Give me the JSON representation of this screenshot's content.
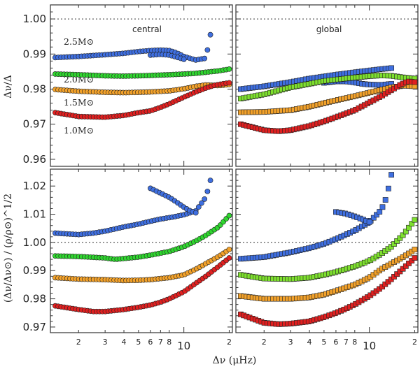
{
  "figure": {
    "xlabel": "Δν (μHz)",
    "ylabel_top": "Δν/Δ",
    "ylabel_bottom": "(Δν/Δν⊙) / (ρ/ρ⊙)^1/2"
  },
  "colors": {
    "2.5": "#3f6fe0",
    "2.0": "#2fd62f",
    "2.0_global": "#7ee02e",
    "1.5": "#f2a12a",
    "1.0": "#e02020",
    "edge": "#222222"
  },
  "chart_data": [
    {
      "type": "scatter",
      "panel": "top-left",
      "annotation": "central",
      "x_scale": "log",
      "xlim": [
        1.3,
        21
      ],
      "ylim": [
        0.958,
        1.004
      ],
      "yticks": [
        0.96,
        0.97,
        0.98,
        0.99,
        1.0
      ],
      "reference_line": 1.0,
      "marker": "circle",
      "mass_labels": [
        "2.5M⊙",
        "2.0M⊙",
        "1.5M⊙",
        "1.0M⊙"
      ],
      "series": [
        {
          "mass": "2.5",
          "x": [
            1.4,
            2,
            3,
            4,
            5,
            6,
            7,
            8,
            9,
            10,
            12,
            14,
            15
          ],
          "y": [
            0.989,
            0.9893,
            0.9898,
            0.9902,
            0.9907,
            0.991,
            0.9911,
            0.991,
            0.9903,
            0.9893,
            0.9883,
            0.9888,
            0.9955
          ]
        },
        {
          "mass": "2.5",
          "x": [
            6,
            7,
            8,
            9,
            10
          ],
          "y": [
            0.9897,
            0.9899,
            0.9897,
            0.9891,
            0.9885
          ]
        },
        {
          "mass": "2.0",
          "x": [
            1.4,
            2,
            3,
            4,
            5,
            6,
            8,
            10,
            12,
            14,
            17,
            20
          ],
          "y": [
            0.9843,
            0.9841,
            0.9838,
            0.9837,
            0.9838,
            0.9839,
            0.9841,
            0.9843,
            0.9845,
            0.9848,
            0.9852,
            0.9857
          ]
        },
        {
          "mass": "1.5",
          "x": [
            1.4,
            2,
            3,
            4,
            5,
            6,
            8,
            10,
            12,
            14,
            17,
            20
          ],
          "y": [
            0.9799,
            0.9794,
            0.9791,
            0.979,
            0.9791,
            0.9792,
            0.9795,
            0.9801,
            0.9808,
            0.9812,
            0.981,
            0.9813
          ]
        },
        {
          "mass": "1.0",
          "x": [
            1.4,
            2,
            3,
            4,
            5,
            6,
            7,
            8,
            10,
            12,
            14,
            16,
            18,
            20
          ],
          "y": [
            0.9733,
            0.9722,
            0.972,
            0.9725,
            0.9733,
            0.9738,
            0.9748,
            0.9758,
            0.9777,
            0.9792,
            0.9803,
            0.9811,
            0.9815,
            0.9818
          ]
        }
      ]
    },
    {
      "type": "scatter",
      "panel": "top-right",
      "annotation": "global",
      "x_scale": "log",
      "xlim": [
        1.3,
        21
      ],
      "ylim": [
        0.958,
        1.004
      ],
      "reference_line": 1.0,
      "marker": "square",
      "series": [
        {
          "mass": "2.5",
          "x": [
            1.4,
            2,
            3,
            4,
            5,
            6,
            8,
            10,
            12,
            14
          ],
          "y": [
            0.98,
            0.9808,
            0.982,
            0.983,
            0.9836,
            0.9841,
            0.9848,
            0.9853,
            0.9857,
            0.986
          ]
        },
        {
          "mass": "2.5",
          "x": [
            5,
            6,
            7,
            8,
            9,
            10,
            12,
            14
          ],
          "y": [
            0.9818,
            0.9822,
            0.9822,
            0.9819,
            0.9815,
            0.9813,
            0.9812,
            0.9815
          ]
        },
        {
          "mass": "2.0",
          "x": [
            1.4,
            2,
            3,
            4,
            5,
            6,
            8,
            10,
            12,
            14,
            17,
            20
          ],
          "y": [
            0.9773,
            0.9785,
            0.9805,
            0.9815,
            0.9823,
            0.9827,
            0.9833,
            0.9837,
            0.9839,
            0.9838,
            0.9833,
            0.983
          ]
        },
        {
          "mass": "1.5",
          "x": [
            1.4,
            2,
            3,
            4,
            5,
            6,
            8,
            10,
            12,
            14,
            17,
            20
          ],
          "y": [
            0.9734,
            0.9735,
            0.974,
            0.975,
            0.976,
            0.9768,
            0.978,
            0.979,
            0.9798,
            0.9805,
            0.981,
            0.9808
          ]
        },
        {
          "mass": "1.0",
          "x": [
            1.4,
            2,
            2.5,
            3,
            4,
            5,
            6,
            8,
            10,
            12,
            14,
            16,
            18,
            20
          ],
          "y": [
            0.97,
            0.9683,
            0.968,
            0.9683,
            0.9695,
            0.9708,
            0.972,
            0.974,
            0.9762,
            0.978,
            0.9797,
            0.9812,
            0.9822,
            0.982
          ]
        }
      ]
    },
    {
      "type": "scatter",
      "panel": "bottom-left",
      "x_scale": "log",
      "xlim": [
        1.3,
        21
      ],
      "ylim": [
        0.968,
        1.026
      ],
      "yticks": [
        0.97,
        0.98,
        0.99,
        1.0,
        1.01,
        1.02
      ],
      "reference_line": 1.0,
      "marker": "circle",
      "series": [
        {
          "mass": "2.5",
          "x": [
            1.4,
            2,
            2.5,
            3,
            4,
            5,
            6,
            7,
            8,
            9,
            10,
            12,
            14,
            15
          ],
          "y": [
            1.0033,
            1.0028,
            1.0033,
            1.004,
            1.0055,
            1.0065,
            1.0075,
            1.0083,
            1.0088,
            1.0093,
            1.0098,
            1.0112,
            1.016,
            1.022
          ]
        },
        {
          "mass": "2.5",
          "x": [
            6,
            7,
            8,
            9,
            10,
            11,
            12
          ],
          "y": [
            1.0192,
            1.0175,
            1.016,
            1.0142,
            1.0125,
            1.0112,
            1.0105
          ]
        },
        {
          "mass": "2.0",
          "x": [
            1.4,
            2,
            3,
            3.5,
            4,
            5,
            6,
            8,
            10,
            12,
            14,
            17,
            20
          ],
          "y": [
            0.9952,
            0.995,
            0.9945,
            0.994,
            0.9943,
            0.9948,
            0.9955,
            0.9968,
            0.9985,
            1.0005,
            1.0025,
            1.0055,
            1.0095
          ]
        },
        {
          "mass": "1.5",
          "x": [
            1.4,
            2,
            3,
            4,
            5,
            6,
            8,
            10,
            12,
            14,
            17,
            20
          ],
          "y": [
            0.9875,
            0.987,
            0.9868,
            0.9865,
            0.9866,
            0.9868,
            0.9875,
            0.9885,
            0.9905,
            0.9925,
            0.995,
            0.9975
          ]
        },
        {
          "mass": "1.0",
          "x": [
            1.4,
            2,
            2.5,
            3,
            4,
            5,
            6,
            7,
            8,
            10,
            12,
            14,
            17,
            20
          ],
          "y": [
            0.9775,
            0.9762,
            0.9755,
            0.9755,
            0.9762,
            0.977,
            0.9778,
            0.9788,
            0.98,
            0.9825,
            0.9855,
            0.988,
            0.9915,
            0.9945
          ]
        }
      ]
    },
    {
      "type": "scatter",
      "panel": "bottom-right",
      "x_scale": "log",
      "xlim": [
        1.3,
        21
      ],
      "ylim": [
        0.968,
        1.026
      ],
      "reference_line": 1.0,
      "marker": "square",
      "series": [
        {
          "mass": "2.5",
          "x": [
            1.4,
            2,
            3,
            4,
            5,
            6,
            7,
            8,
            10,
            12,
            13,
            14
          ],
          "y": [
            0.9942,
            0.9948,
            0.9965,
            0.998,
            0.9995,
            1.0012,
            1.0028,
            1.0042,
            1.0072,
            1.0115,
            1.016,
            1.024
          ]
        },
        {
          "mass": "2.5",
          "x": [
            6,
            7,
            8,
            9,
            10
          ],
          "y": [
            1.0108,
            1.0102,
            1.0092,
            1.0082,
            1.0072
          ]
        },
        {
          "mass": "2.0",
          "x": [
            1.4,
            2,
            3,
            4,
            5,
            6,
            8,
            10,
            12,
            14,
            17,
            20
          ],
          "y": [
            0.9885,
            0.9872,
            0.987,
            0.9875,
            0.9885,
            0.9895,
            0.9915,
            0.9935,
            0.996,
            0.9985,
            1.003,
            1.008
          ]
        },
        {
          "mass": "1.5",
          "x": [
            1.4,
            2,
            3,
            4,
            5,
            6,
            8,
            10,
            12,
            14,
            17,
            20
          ],
          "y": [
            0.981,
            0.98,
            0.98,
            0.9805,
            0.9815,
            0.9828,
            0.985,
            0.9875,
            0.9905,
            0.9925,
            0.995,
            0.9975
          ]
        },
        {
          "mass": "1.0",
          "x": [
            1.4,
            2,
            2.5,
            3,
            4,
            5,
            6,
            7,
            8,
            10,
            12,
            14,
            17,
            20
          ],
          "y": [
            0.9745,
            0.9715,
            0.971,
            0.9712,
            0.972,
            0.9735,
            0.975,
            0.9765,
            0.978,
            0.981,
            0.984,
            0.987,
            0.991,
            0.9945
          ]
        }
      ]
    }
  ],
  "xticks": {
    "major": [
      10
    ],
    "minor": [
      2,
      3,
      4,
      5,
      6,
      7,
      8,
      20
    ],
    "labels": [
      "10",
      "2",
      "3",
      "4",
      "5",
      "6",
      "7",
      "8",
      "2"
    ]
  }
}
